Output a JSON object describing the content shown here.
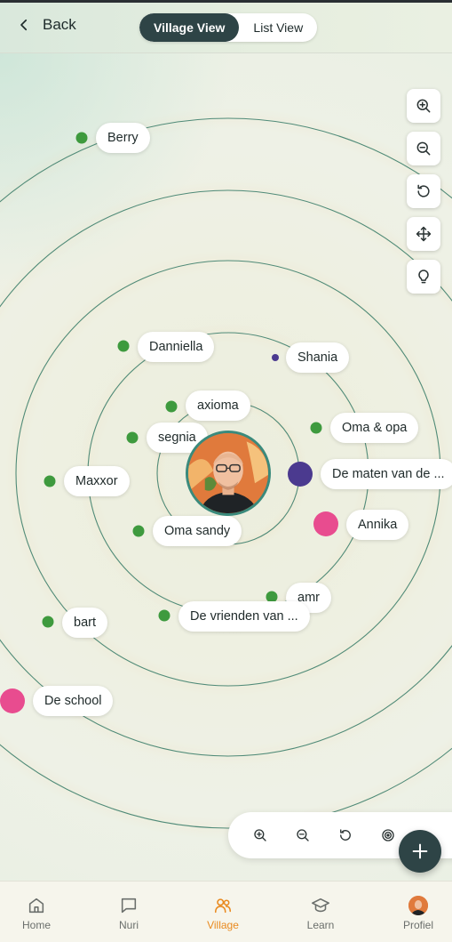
{
  "header": {
    "back_label": "Back",
    "tabs": [
      {
        "label": "Village View",
        "active": true
      },
      {
        "label": "List View",
        "active": false
      }
    ]
  },
  "map_controls": [
    "zoom-in-icon",
    "zoom-out-icon",
    "reset-icon",
    "move-icon",
    "lightbulb-icon"
  ],
  "nodes": [
    {
      "label": "Berry",
      "dot_color": "#3e9a3e"
    },
    {
      "label": "Danniella",
      "dot_color": "#3e9a3e"
    },
    {
      "label": "Shania",
      "dot_color": "#4b3a8f"
    },
    {
      "label": "axioma",
      "dot_color": "#3e9a3e"
    },
    {
      "label": "segnia",
      "dot_color": "#3e9a3e"
    },
    {
      "label": "Oma & opa",
      "dot_color": "#3e9a3e"
    },
    {
      "label": "De maten van de ...",
      "dot_color": "#4b3a8f"
    },
    {
      "label": "Maxxor",
      "dot_color": "#3e9a3e"
    },
    {
      "label": "Oma sandy",
      "dot_color": "#3e9a3e"
    },
    {
      "label": "Annika",
      "dot_color": "#e84c8f"
    },
    {
      "label": "amr",
      "dot_color": "#3e9a3e"
    },
    {
      "label": "bart",
      "dot_color": "#3e9a3e"
    },
    {
      "label": "De vrienden van ...",
      "dot_color": "#3e9a3e"
    },
    {
      "label": "De school",
      "dot_color": "#e84c8f"
    }
  ],
  "zoom_toolbar": [
    "zoom-in-icon",
    "zoom-out-icon",
    "reset-icon",
    "target-icon"
  ],
  "fab_icon": "plus-icon",
  "nav": {
    "items": [
      {
        "label": "Home",
        "icon": "home-icon",
        "active": false
      },
      {
        "label": "Nuri",
        "icon": "chat-icon",
        "active": false
      },
      {
        "label": "Village",
        "icon": "people-icon",
        "active": true
      },
      {
        "label": "Learn",
        "icon": "graduation-cap-icon",
        "active": false
      },
      {
        "label": "Profiel",
        "icon": "avatar",
        "active": false
      }
    ]
  },
  "colors": {
    "accent_dark": "#2e4446",
    "nav_active": "#e98a1f",
    "ring_stroke": "#4f8a78"
  }
}
